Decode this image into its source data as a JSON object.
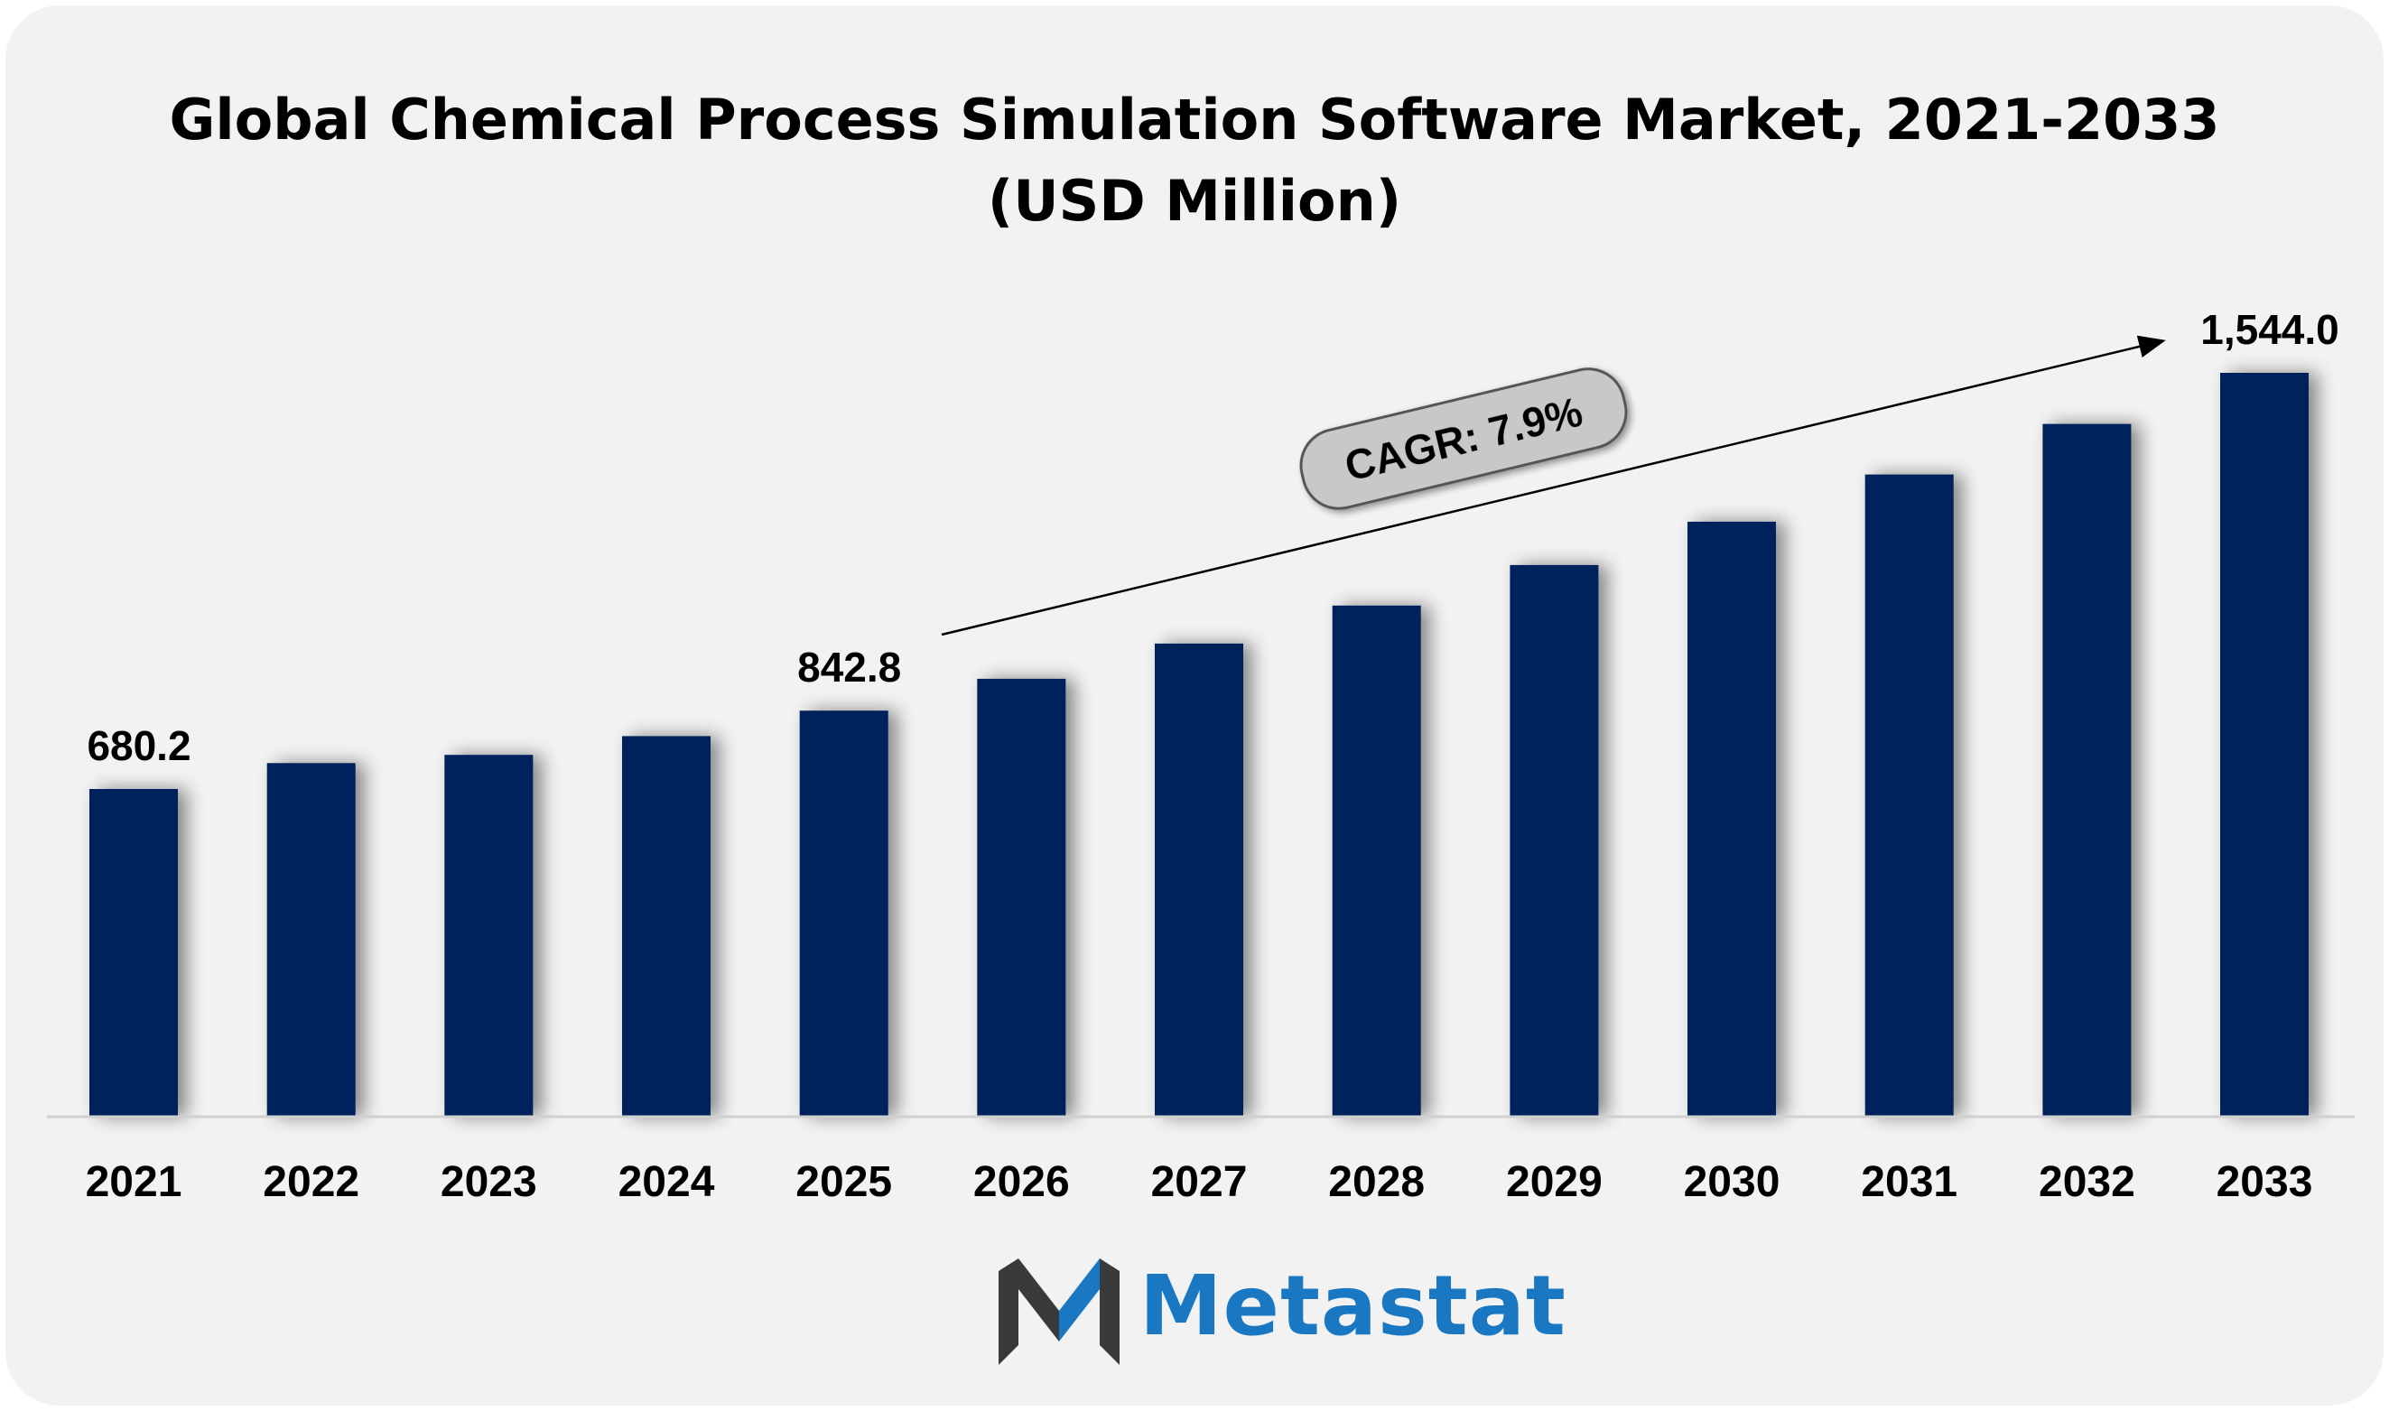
{
  "title_line1": "Global Chemical Process Simulation Software Market, 2021-2033",
  "title_line2": "(USD Million)",
  "cagr_label": "CAGR: 7.9%",
  "brand": {
    "name": "Metastat",
    "color": "#1a78c2",
    "dark": "#3a3a3a"
  },
  "colors": {
    "bar": "#03205c",
    "background": "#f2f2f2",
    "badge": "#c8c8c8"
  },
  "chart_data": {
    "type": "bar",
    "title": "Global Chemical Process Simulation Software Market, 2021-2033 (USD Million)",
    "xlabel": "",
    "ylabel": "",
    "categories": [
      "2021",
      "2022",
      "2023",
      "2024",
      "2025",
      "2026",
      "2027",
      "2028",
      "2029",
      "2030",
      "2031",
      "2032",
      "2033"
    ],
    "values": [
      680.2,
      734.0,
      751.0,
      790.0,
      842.8,
      909.0,
      982.0,
      1061.0,
      1145.0,
      1235.0,
      1333.0,
      1438.0,
      1544.0
    ],
    "data_labels": {
      "0": "680.2",
      "4": "842.8",
      "12": "1,544.0"
    },
    "ylim": [
      0,
      1544.0
    ],
    "grid": false,
    "legend": "none",
    "annotation": "CAGR: 7.9%"
  }
}
